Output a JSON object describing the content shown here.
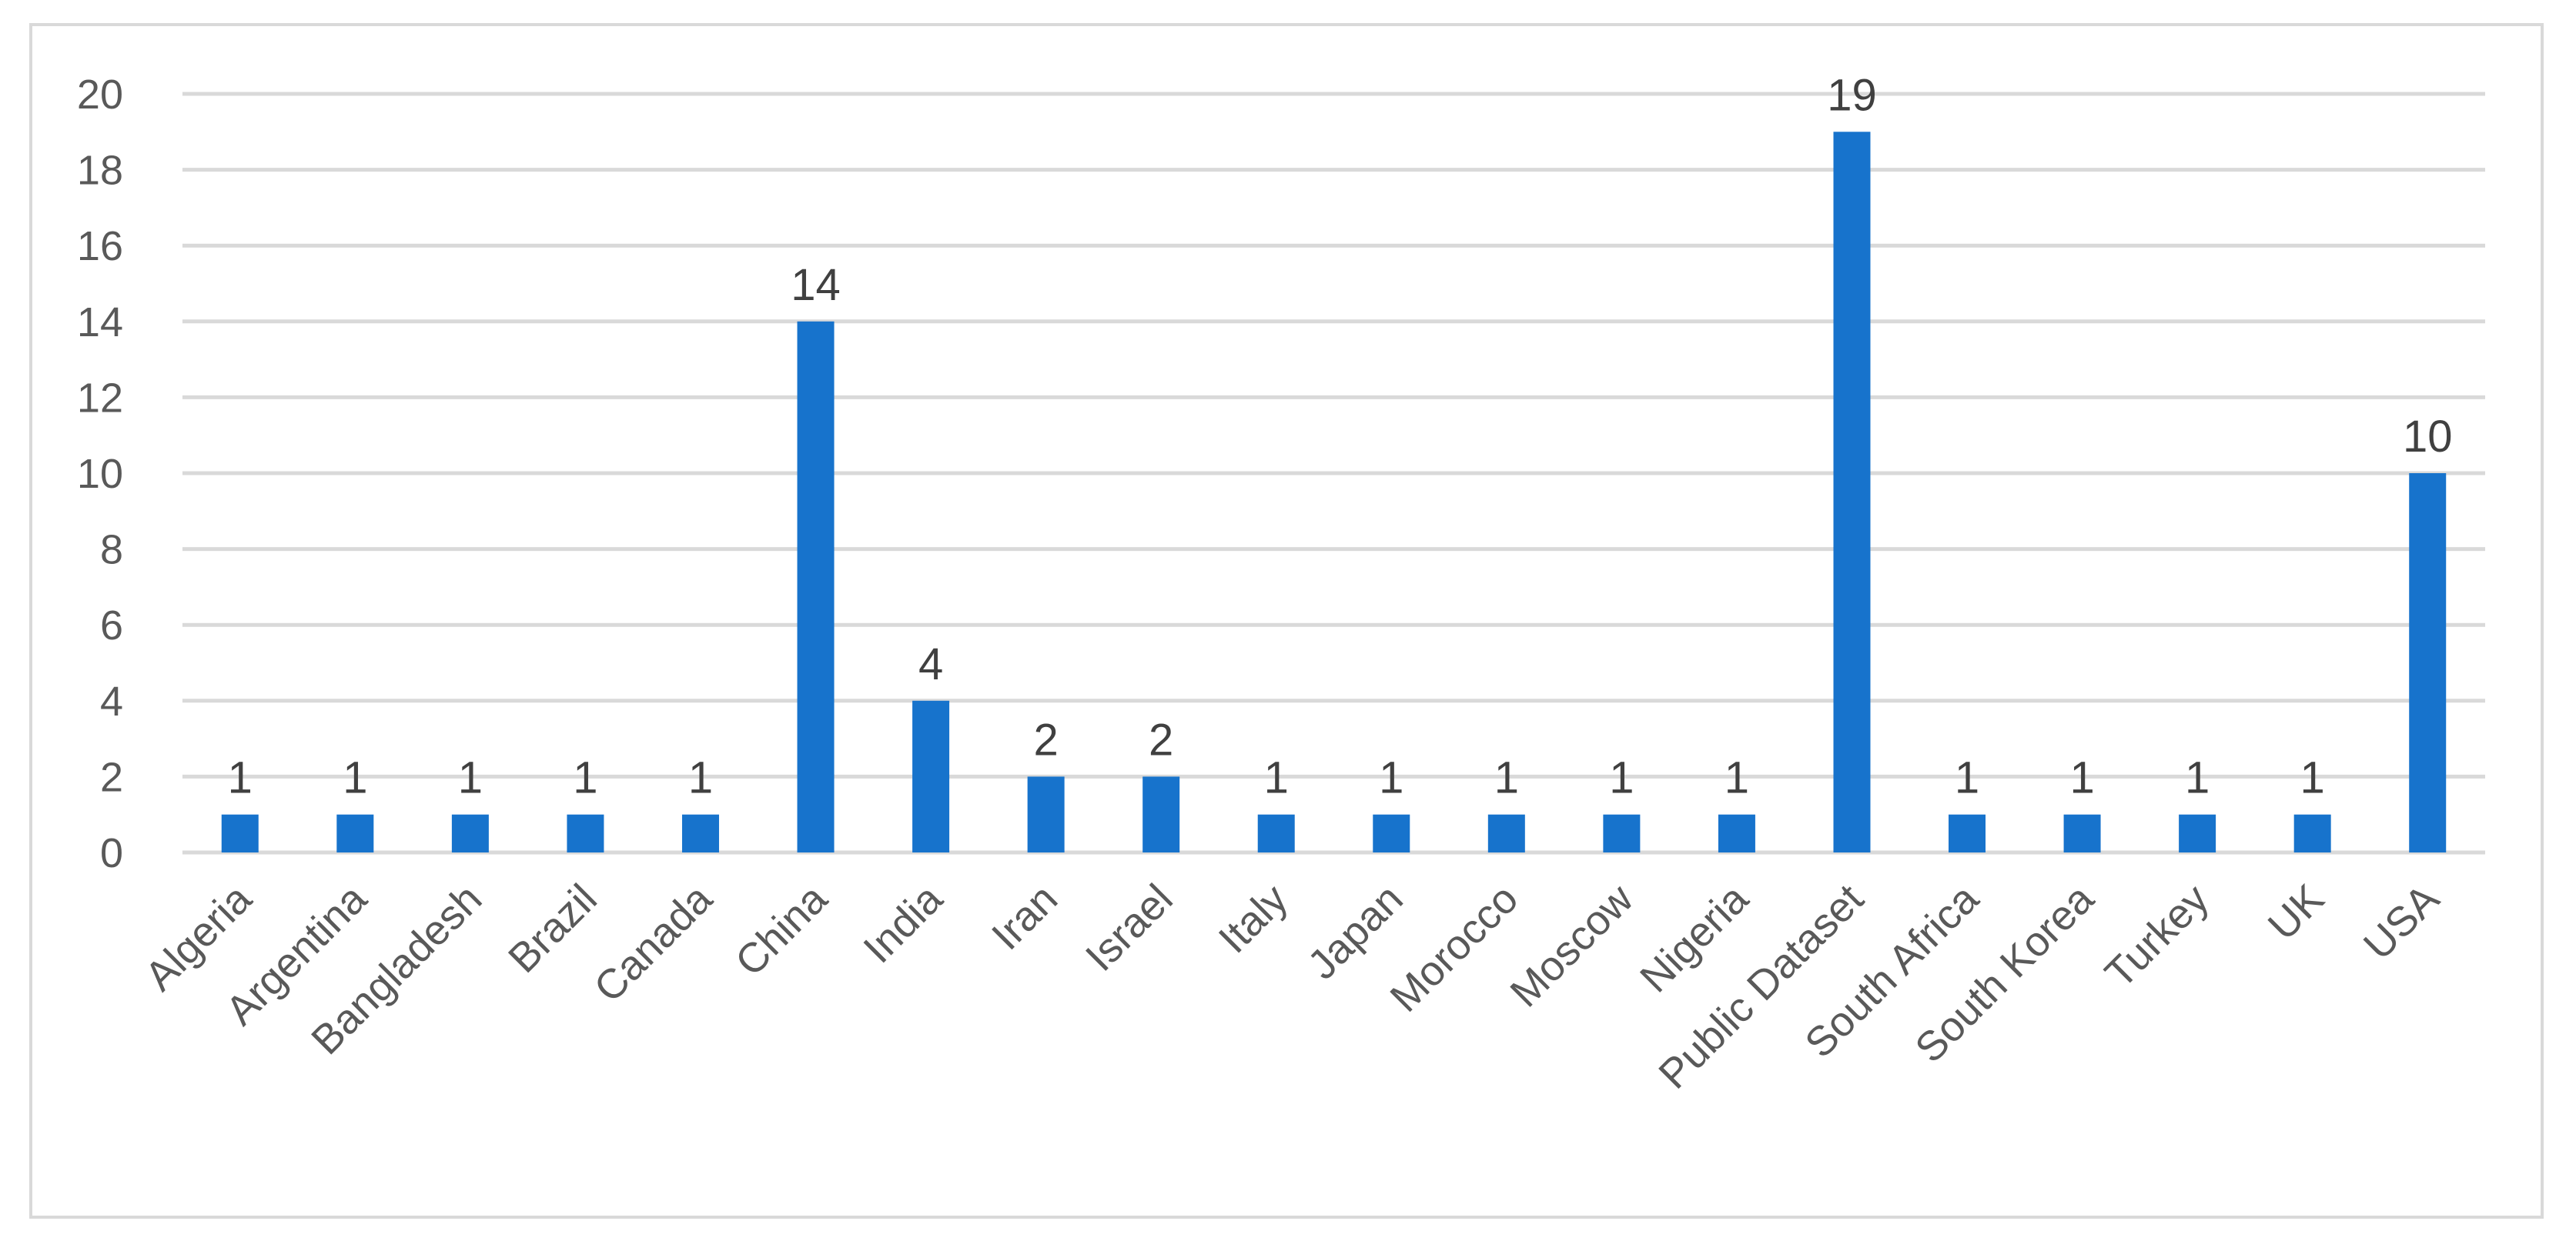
{
  "chart_data": {
    "type": "bar",
    "categories": [
      "Algeria",
      "Argentina",
      "Bangladesh",
      "Brazil",
      "Canada",
      "China",
      "India",
      "Iran",
      "Israel",
      "Italy",
      "Japan",
      "Morocco",
      "Moscow",
      "Nigeria",
      "Public Dataset",
      "South Africa",
      "South Korea",
      "Turkey",
      "UK",
      "USA"
    ],
    "values": [
      1,
      1,
      1,
      1,
      1,
      14,
      4,
      2,
      2,
      1,
      1,
      1,
      1,
      1,
      19,
      1,
      1,
      1,
      1,
      10
    ],
    "title": "",
    "xlabel": "",
    "ylabel": "",
    "ylim": [
      0,
      20
    ],
    "yticks": [
      0,
      2,
      4,
      6,
      8,
      10,
      12,
      14,
      16,
      18,
      20
    ],
    "grid": true,
    "data_labels": true,
    "legend": "none",
    "bar_color": "#1773cc"
  }
}
